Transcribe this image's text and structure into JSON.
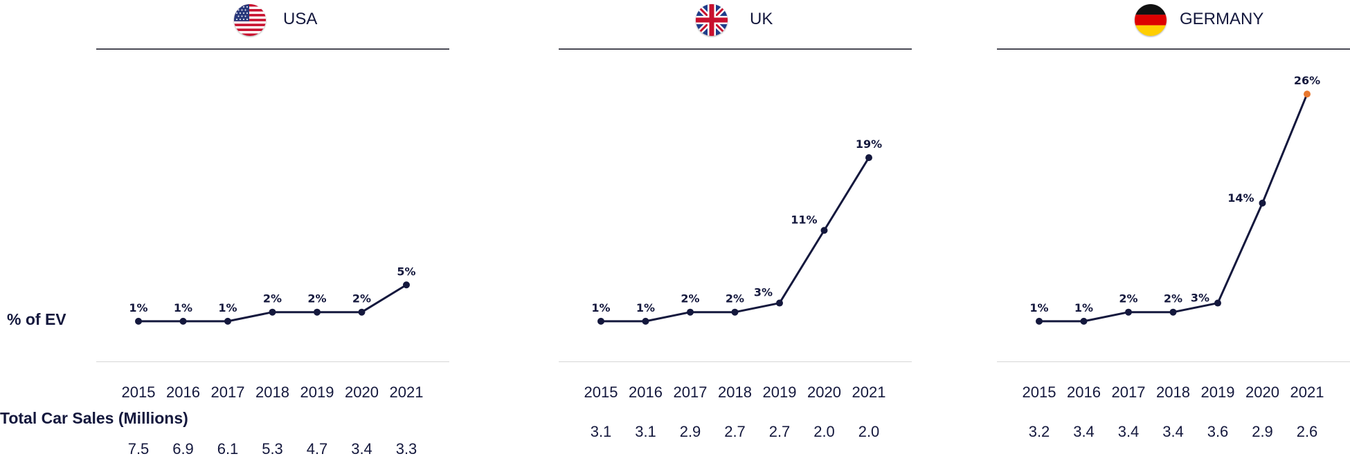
{
  "left_labels": {
    "ev_share": "% of EV",
    "car_sales": "Total Car Sales (Millions)"
  },
  "colors": {
    "line": "#14183d",
    "highlight": "#e8772e",
    "axis": "#4a4a55"
  },
  "panels": [
    {
      "country": "USA",
      "flag_icon": "usa-flag-icon"
    },
    {
      "country": "UK",
      "flag_icon": "uk-flag-icon"
    },
    {
      "country": "GERMANY",
      "flag_icon": "germany-flag-icon"
    }
  ],
  "chart_data": [
    {
      "type": "line",
      "title": "USA",
      "ylabel": "% of EV",
      "x": [
        "2015",
        "2016",
        "2017",
        "2018",
        "2019",
        "2020",
        "2021"
      ],
      "series": [
        {
          "values": [
            1,
            1,
            1,
            2,
            2,
            2,
            5
          ]
        }
      ],
      "data_labels": [
        "1%",
        "1%",
        "1%",
        "2%",
        "2%",
        "2%",
        "5%"
      ],
      "sales": [
        "7.5",
        "6.9",
        "6.1",
        "5.3",
        "4.7",
        "3.4",
        "3.3"
      ],
      "ylim": [
        0,
        26
      ]
    },
    {
      "type": "line",
      "title": "UK",
      "x": [
        "2015",
        "2016",
        "2017",
        "2018",
        "2019",
        "2020",
        "2021"
      ],
      "series": [
        {
          "values": [
            1,
            1,
            2,
            2,
            3,
            11,
            19
          ]
        }
      ],
      "data_labels": [
        "1%",
        "1%",
        "2%",
        "2%",
        "3%",
        "11%",
        "19%"
      ],
      "sales": [
        "3.1",
        "3.1",
        "2.9",
        "2.7",
        "2.7",
        "2.0",
        "2.0"
      ],
      "ylim": [
        0,
        26
      ]
    },
    {
      "type": "line",
      "title": "GERMANY",
      "x": [
        "2015",
        "2016",
        "2017",
        "2018",
        "2019",
        "2020",
        "2021"
      ],
      "series": [
        {
          "values": [
            1,
            1,
            2,
            2,
            3,
            14,
            26
          ]
        }
      ],
      "data_labels": [
        "1%",
        "1%",
        "2%",
        "2%",
        "3%",
        "14%",
        "26%"
      ],
      "sales": [
        "3.2",
        "3.4",
        "3.4",
        "3.4",
        "3.6",
        "2.9",
        "2.6"
      ],
      "ylim": [
        0,
        26
      ],
      "highlight_last": true
    }
  ]
}
